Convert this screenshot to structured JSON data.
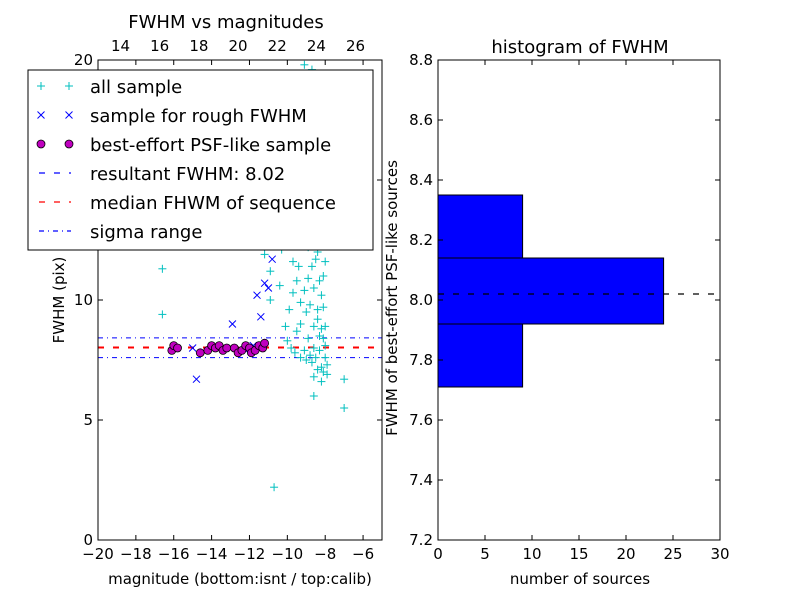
{
  "chart_data": [
    {
      "type": "scatter",
      "title": "FWHM vs magnitudes",
      "xlabel": "magnitude (bottom:isnt / top:calib)",
      "ylabel": "FWHM (pix)",
      "xlim": [
        -20,
        -5
      ],
      "ylim": [
        0,
        20
      ],
      "top_xlim": [
        12.85,
        27.35
      ],
      "x_ticks": [
        "−20",
        "−18",
        "−16",
        "−14",
        "−12",
        "−10",
        "−8",
        "−6"
      ],
      "x_tick_values": [
        -20,
        -18,
        -16,
        -14,
        -12,
        -10,
        -8,
        -6
      ],
      "top_x_ticks": [
        "14",
        "16",
        "18",
        "20",
        "22",
        "24",
        "26"
      ],
      "top_x_tick_values": [
        14,
        16,
        18,
        20,
        22,
        24,
        26
      ],
      "y_ticks": [
        "0",
        "5",
        "10",
        "15",
        "20"
      ],
      "y_tick_values": [
        0,
        5,
        10,
        15,
        20
      ],
      "legend_position": "upper-left",
      "series": [
        {
          "name": "all sample",
          "marker": "plus",
          "color": "#00bfbf",
          "points": [
            [
              -16.6,
              11.3
            ],
            [
              -16.6,
              9.4
            ],
            [
              -10.7,
              2.2
            ],
            [
              -7.0,
              5.5
            ],
            [
              -7.0,
              6.7
            ],
            [
              -8.6,
              6.0
            ],
            [
              -11.8,
              13.3
            ],
            [
              -11.2,
              11.9
            ],
            [
              -10.9,
              11.2
            ],
            [
              -10.9,
              10.0
            ],
            [
              -10.4,
              10.6
            ],
            [
              -10.3,
              12.1
            ],
            [
              -9.8,
              13.7
            ],
            [
              -9.6,
              14.5
            ],
            [
              -9.4,
              15.6
            ],
            [
              -9.2,
              17.5
            ],
            [
              -9.1,
              19.8
            ],
            [
              -8.7,
              19.6
            ],
            [
              -8.3,
              18.0
            ],
            [
              -8.8,
              16.5
            ],
            [
              -9.0,
              13.0
            ],
            [
              -8.9,
              12.2
            ],
            [
              -8.5,
              11.7
            ],
            [
              -8.3,
              10.8
            ],
            [
              -8.6,
              10.5
            ],
            [
              -8.8,
              9.8
            ],
            [
              -9.0,
              9.5
            ],
            [
              -9.3,
              9.0
            ],
            [
              -9.5,
              8.7
            ],
            [
              -8.4,
              9.2
            ],
            [
              -8.2,
              8.8
            ],
            [
              -8.1,
              8.4
            ],
            [
              -8.0,
              8.1
            ],
            [
              -8.3,
              7.9
            ],
            [
              -8.5,
              7.6
            ],
            [
              -8.7,
              7.4
            ],
            [
              -8.2,
              7.2
            ],
            [
              -8.1,
              7.0
            ],
            [
              -7.9,
              7.3
            ],
            [
              -8.0,
              7.6
            ],
            [
              -8.2,
              12.8
            ],
            [
              -8.4,
              13.6
            ],
            [
              -8.1,
              14.4
            ],
            [
              -8.3,
              15.1
            ],
            [
              -8.6,
              14.8
            ],
            [
              -8.8,
              13.9
            ],
            [
              -9.2,
              12.4
            ],
            [
              -9.4,
              11.4
            ],
            [
              -9.7,
              10.3
            ],
            [
              -9.9,
              9.6
            ],
            [
              -10.1,
              8.9
            ],
            [
              -10.0,
              8.3
            ],
            [
              -9.8,
              8.0
            ],
            [
              -9.6,
              7.8
            ],
            [
              -9.3,
              7.6
            ],
            [
              -9.1,
              7.9
            ],
            [
              -8.9,
              8.4
            ],
            [
              -8.6,
              8.9
            ],
            [
              -8.4,
              9.6
            ],
            [
              -8.2,
              10.2
            ],
            [
              -8.1,
              11.0
            ],
            [
              -8.0,
              11.6
            ],
            [
              -8.2,
              12.3
            ],
            [
              -8.4,
              12.0
            ],
            [
              -8.7,
              11.4
            ],
            [
              -8.9,
              10.9
            ],
            [
              -9.1,
              10.4
            ],
            [
              -9.3,
              9.9
            ],
            [
              -9.5,
              10.8
            ],
            [
              -9.7,
              11.6
            ],
            [
              -9.0,
              14.2
            ],
            [
              -8.5,
              15.6
            ],
            [
              -8.9,
              17.2
            ],
            [
              -9.3,
              16.3
            ],
            [
              -9.8,
              15.2
            ],
            [
              -10.2,
              14.0
            ],
            [
              -10.5,
              12.8
            ],
            [
              -10.8,
              12.6
            ],
            [
              -11.0,
              13.9
            ],
            [
              -10.6,
              15.4
            ],
            [
              -8.1,
              9.7
            ],
            [
              -8.0,
              8.9
            ],
            [
              -8.3,
              8.5
            ],
            [
              -8.6,
              8.0
            ],
            [
              -8.8,
              7.7
            ],
            [
              -9.0,
              7.5
            ],
            [
              -8.4,
              7.1
            ],
            [
              -8.6,
              6.8
            ],
            [
              -8.2,
              6.6
            ],
            [
              -7.9,
              6.9
            ]
          ]
        },
        {
          "name": "sample for rough FWHM",
          "marker": "x",
          "color": "#0000ff",
          "points": [
            [
              -14.8,
              6.7
            ],
            [
              -12.9,
              9.0
            ],
            [
              -12.2,
              7.9
            ],
            [
              -11.6,
              10.2
            ],
            [
              -11.4,
              9.3
            ],
            [
              -11.2,
              10.7
            ],
            [
              -11.0,
              10.5
            ],
            [
              -10.8,
              11.7
            ],
            [
              -15.0,
              8.0
            ],
            [
              -11.8,
              8.1
            ]
          ]
        },
        {
          "name": "best-effort PSF-like sample",
          "marker": "circle",
          "color": "#bf00bf",
          "points": [
            [
              -16.1,
              7.9
            ],
            [
              -16.0,
              8.1
            ],
            [
              -15.8,
              8.0
            ],
            [
              -14.6,
              7.8
            ],
            [
              -14.2,
              7.9
            ],
            [
              -14.0,
              8.1
            ],
            [
              -13.8,
              8.0
            ],
            [
              -13.6,
              8.1
            ],
            [
              -13.4,
              7.9
            ],
            [
              -13.2,
              8.0
            ],
            [
              -12.8,
              8.0
            ],
            [
              -12.6,
              7.8
            ],
            [
              -12.4,
              7.9
            ],
            [
              -12.2,
              8.1
            ],
            [
              -12.0,
              8.0
            ],
            [
              -11.9,
              7.8
            ],
            [
              -11.7,
              7.9
            ],
            [
              -11.5,
              8.1
            ],
            [
              -11.3,
              8.0
            ],
            [
              -11.2,
              8.2
            ]
          ]
        }
      ],
      "lines": [
        {
          "name": "resultant FWHM: 8.02",
          "y": 8.02,
          "color": "#0000ff",
          "style": "dashed"
        },
        {
          "name": "median FHWM of sequence",
          "y": 8.02,
          "color": "#ff0000",
          "style": "dashed"
        },
        {
          "name": "sigma range",
          "y_values": [
            7.6,
            8.42
          ],
          "color": "#0000ff",
          "style": "dashdot"
        }
      ]
    },
    {
      "type": "bar",
      "orientation": "horizontal",
      "title": "histogram of FWHM",
      "xlabel": "number of sources",
      "ylabel": "FWHM of best-effort PSF-like sources",
      "xlim": [
        0,
        30
      ],
      "ylim": [
        7.2,
        8.8
      ],
      "x_ticks": [
        "0",
        "5",
        "10",
        "15",
        "20",
        "25",
        "30"
      ],
      "x_tick_values": [
        0,
        5,
        10,
        15,
        20,
        25,
        30
      ],
      "y_ticks": [
        "7.2",
        "7.4",
        "7.6",
        "7.8",
        "8.0",
        "8.2",
        "8.4",
        "8.6",
        "8.8"
      ],
      "y_tick_values": [
        7.2,
        7.4,
        7.6,
        7.8,
        8.0,
        8.2,
        8.4,
        8.6,
        8.8
      ],
      "bins": [
        {
          "low": 7.71,
          "high": 7.92,
          "count": 9
        },
        {
          "low": 7.92,
          "high": 8.14,
          "count": 24
        },
        {
          "low": 8.14,
          "high": 8.35,
          "count": 9
        }
      ],
      "bar_color": "#0000ff",
      "reference_line": {
        "y": 8.02,
        "color": "#000000",
        "style": "dashed"
      }
    }
  ]
}
